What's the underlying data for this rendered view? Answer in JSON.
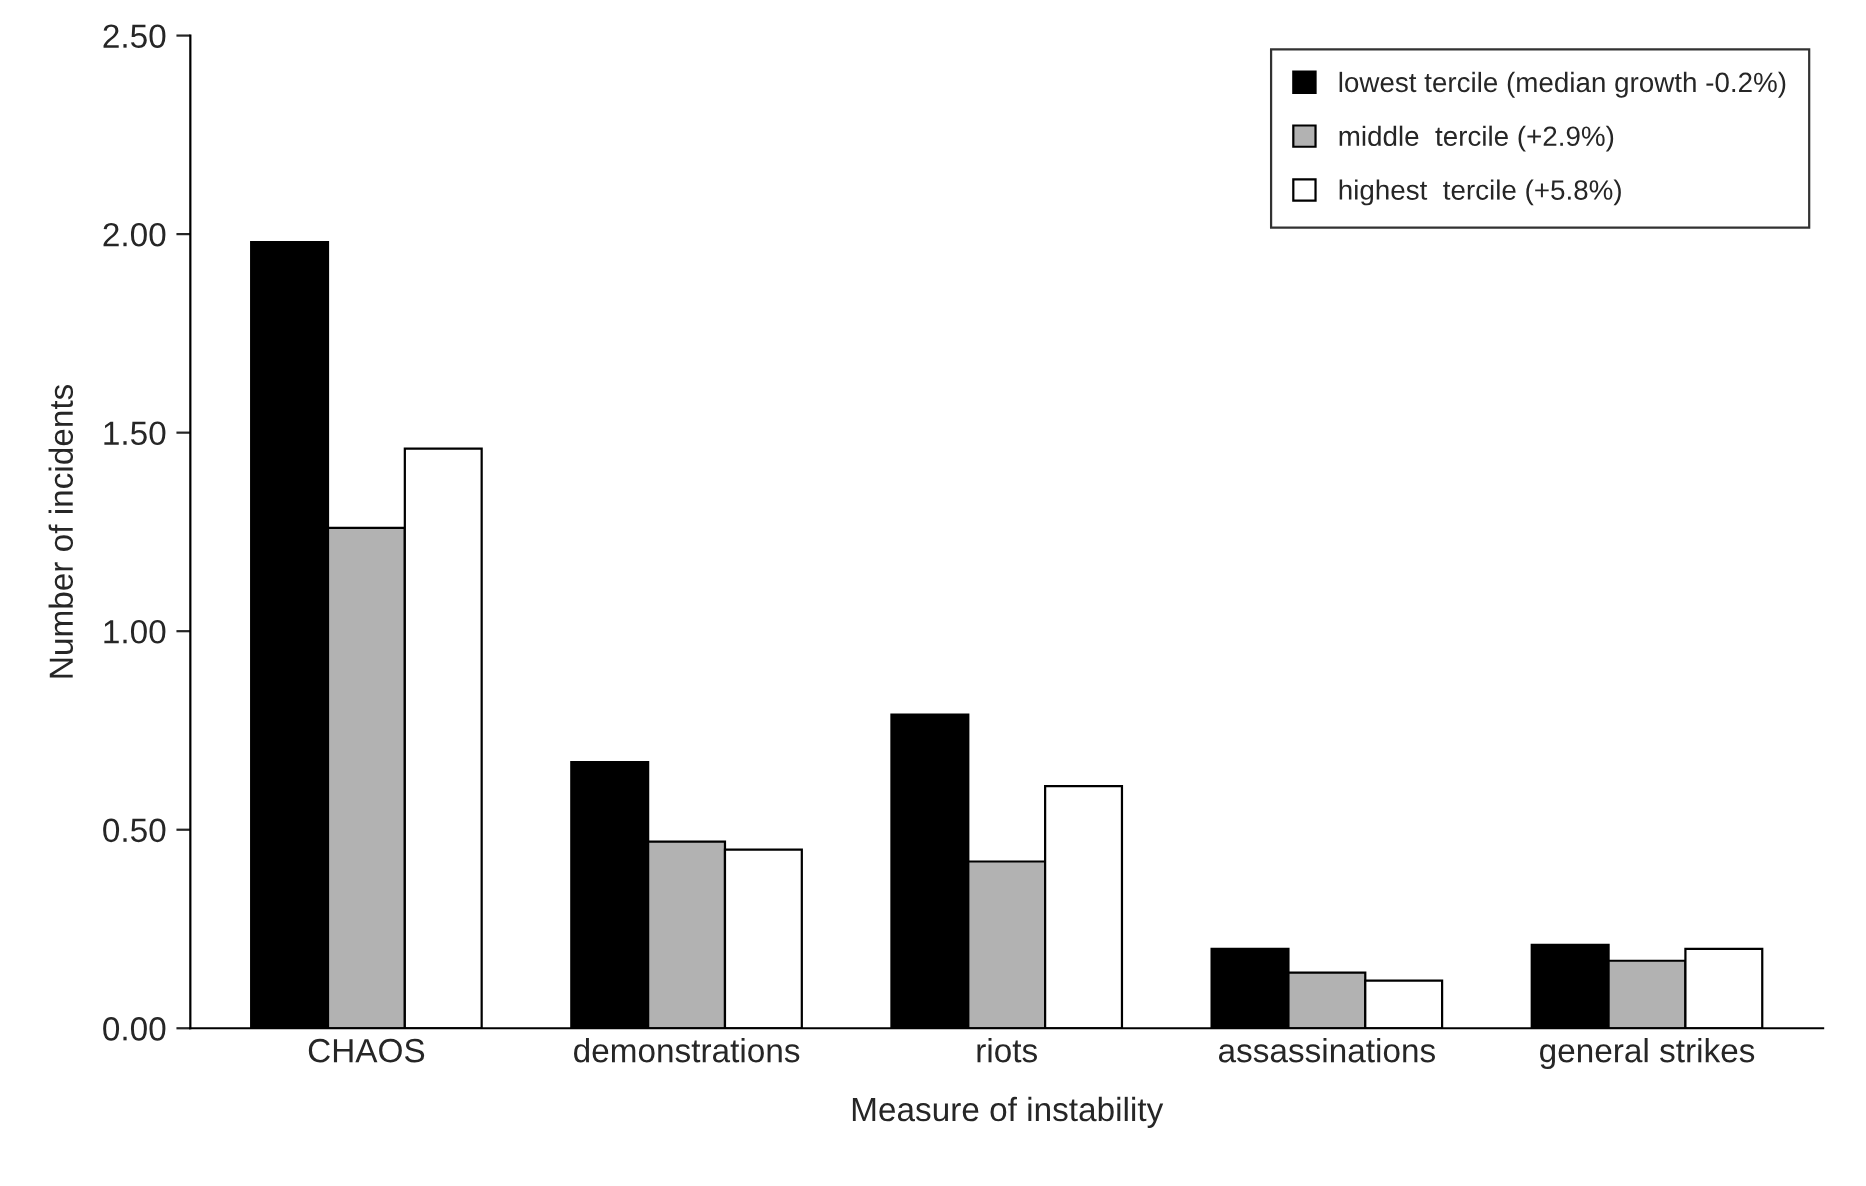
{
  "chart_data": {
    "type": "bar",
    "xlabel": "Measure of instability",
    "ylabel": "Number of incidents",
    "categories": [
      "CHAOS",
      "demonstrations",
      "riots",
      "assassinations",
      "general strikes"
    ],
    "series": [
      {
        "name": "lowest tercile (median growth -0.2%)",
        "color": "#000000",
        "values": [
          1.98,
          0.67,
          0.79,
          0.2,
          0.21
        ]
      },
      {
        "name": "middle  tercile (+2.9%)",
        "color": "#b2b2b2",
        "values": [
          1.26,
          0.47,
          0.42,
          0.14,
          0.17
        ]
      },
      {
        "name": "highest  tercile (+5.8%)",
        "color": "#ffffff",
        "values": [
          1.46,
          0.45,
          0.61,
          0.12,
          0.2
        ]
      }
    ],
    "ylim": [
      0,
      2.5
    ],
    "yticks": [
      {
        "value": 0,
        "label": "0.00"
      },
      {
        "value": 0.5,
        "label": "0.50"
      },
      {
        "value": 1,
        "label": "1.00"
      },
      {
        "value": 1.5,
        "label": "1.50"
      },
      {
        "value": 2,
        "label": "2.00"
      },
      {
        "value": 2.5,
        "label": "2.50"
      }
    ],
    "grid": false,
    "legend": "top right"
  }
}
